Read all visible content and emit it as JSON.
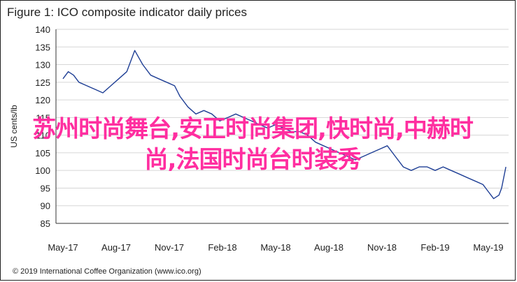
{
  "chart_data": {
    "type": "line",
    "title": "Figure 1: ICO composite indicator daily prices",
    "ylabel": "US cents/lb",
    "xlabel": "",
    "ylim": [
      85,
      140
    ],
    "yticks": [
      85,
      90,
      95,
      100,
      105,
      110,
      115,
      120,
      125,
      130,
      135,
      140
    ],
    "xticks": [
      "May-17",
      "Aug-17",
      "Nov-17",
      "Feb-18",
      "May-18",
      "Aug-18",
      "Nov-18",
      "Feb-19",
      "May-19"
    ],
    "grid": "horizontal",
    "series": [
      {
        "color": "#1f3f95",
        "x": [
          0,
          0.1,
          0.2,
          0.3,
          0.45,
          0.6,
          0.75,
          0.9,
          1.05,
          1.2,
          1.35,
          1.5,
          1.65,
          1.8,
          1.95,
          2.1,
          2.2,
          2.35,
          2.5,
          2.65,
          2.8,
          2.95,
          3.1,
          3.25,
          3.4,
          3.55,
          3.7,
          3.85,
          4.0,
          4.15,
          4.3,
          4.45,
          4.6,
          4.75,
          4.9,
          5.05,
          5.2,
          5.35,
          5.5,
          5.65,
          5.8,
          5.95,
          6.1,
          6.25,
          6.4,
          6.55,
          6.7,
          6.85,
          7.0,
          7.15,
          7.3,
          7.45,
          7.6,
          7.75,
          7.9,
          8.0,
          8.05,
          8.1,
          8.2,
          8.25,
          8.33
        ],
        "values": [
          126,
          128,
          127,
          125,
          124,
          123,
          122,
          124,
          126,
          128,
          134,
          130,
          127,
          126,
          125,
          124,
          121,
          118,
          116,
          117,
          116,
          114,
          115,
          116,
          115,
          114,
          113,
          112,
          113,
          112,
          111,
          111,
          110,
          108,
          107,
          106,
          105,
          104,
          103,
          104,
          105,
          106,
          107,
          104,
          101,
          100,
          101,
          101,
          100,
          101,
          100,
          99,
          98,
          97,
          96,
          94,
          93,
          92,
          93,
          95,
          101
        ]
      }
    ]
  },
  "footer": "© 2019 International Coffee Organization (www.ico.org)",
  "overlay_text": "苏州时尚舞台,安正时尚集团,快时尚,中赫时尚,法国时尚台时装秀",
  "colors": {
    "line": "#1f3f95",
    "grid": "#d6d6d6",
    "overlay": "#ff2ea0"
  }
}
